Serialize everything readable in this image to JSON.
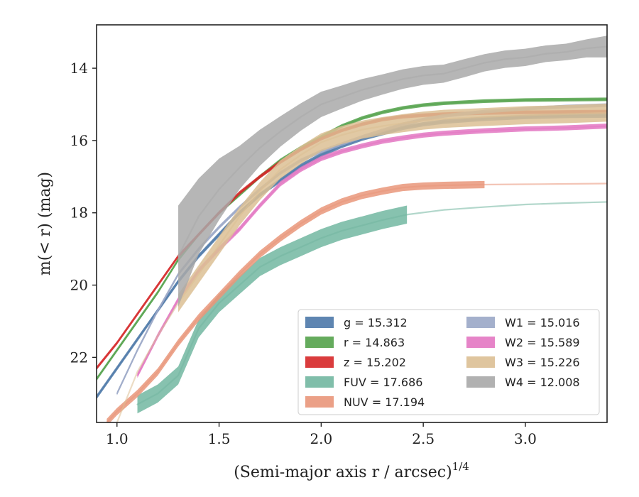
{
  "chart_data": {
    "type": "line",
    "xlabel": "(Semi-major axis r / arcsec)",
    "xlabel_sup": "1/4",
    "ylabel": "m(< r) (mag)",
    "xlim": [
      0.9,
      3.4
    ],
    "ylim": [
      23.8,
      12.8
    ],
    "y_inverted": true,
    "grid": false,
    "legend_position": "lower-right",
    "xticks": [
      1.0,
      1.5,
      2.0,
      2.5,
      3.0
    ],
    "xtick_labels": [
      "1.0",
      "1.5",
      "2.0",
      "2.5",
      "3.0"
    ],
    "yticks": [
      14,
      16,
      18,
      20,
      22
    ],
    "ytick_labels": [
      "14",
      "16",
      "18",
      "20",
      "22"
    ],
    "series": [
      {
        "name": "g",
        "legend_label": "g = 15.312",
        "color": "#4c78a8",
        "x": [
          0.9,
          1.0,
          1.1,
          1.2,
          1.3,
          1.4,
          1.5,
          1.6,
          1.7,
          1.8,
          1.9,
          2.0,
          2.1,
          2.2,
          2.3,
          2.4,
          2.5,
          2.6,
          2.8,
          3.0,
          3.2,
          3.4
        ],
        "y": [
          23.1,
          22.3,
          21.5,
          20.7,
          19.9,
          19.2,
          18.6,
          18.0,
          17.5,
          17.1,
          16.7,
          16.4,
          16.15,
          15.95,
          15.8,
          15.65,
          15.55,
          15.48,
          15.4,
          15.35,
          15.32,
          15.31
        ],
        "band_halfwidth": 0.06
      },
      {
        "name": "r",
        "legend_label": "r = 14.863",
        "color": "#54a24b",
        "x": [
          0.9,
          1.0,
          1.1,
          1.2,
          1.3,
          1.4,
          1.5,
          1.6,
          1.7,
          1.8,
          1.9,
          2.0,
          2.1,
          2.2,
          2.3,
          2.4,
          2.5,
          2.6,
          2.8,
          3.0,
          3.2,
          3.4
        ],
        "y": [
          22.6,
          21.8,
          21.0,
          20.2,
          19.3,
          18.6,
          18.0,
          17.5,
          17.0,
          16.55,
          16.2,
          15.9,
          15.6,
          15.38,
          15.22,
          15.1,
          15.02,
          14.97,
          14.91,
          14.88,
          14.87,
          14.86
        ],
        "band_halfwidth": 0.05
      },
      {
        "name": "z",
        "legend_label": "z = 15.202",
        "color": "#d62728",
        "x": [
          0.9,
          1.0,
          1.1,
          1.2,
          1.3,
          1.4,
          1.5,
          1.6,
          1.7,
          1.8,
          1.9,
          2.0,
          2.1,
          2.2,
          2.3,
          2.4,
          2.5,
          2.6,
          2.8,
          3.0,
          3.2,
          3.4
        ],
        "y": [
          22.3,
          21.6,
          20.8,
          20.0,
          19.2,
          18.6,
          18.0,
          17.45,
          17.0,
          16.6,
          16.25,
          15.95,
          15.72,
          15.55,
          15.42,
          15.34,
          15.3,
          15.27,
          15.24,
          15.22,
          15.21,
          15.2
        ],
        "band_halfwidth": 0.05
      },
      {
        "name": "FUV",
        "legend_label": "FUV = 17.686",
        "color": "#72b7a1",
        "x": [
          1.1,
          1.2,
          1.3,
          1.4,
          1.5,
          1.6,
          1.7,
          1.8,
          1.9,
          2.0,
          2.1,
          2.2,
          2.3,
          2.42,
          2.6,
          2.8,
          3.0,
          3.2,
          3.4
        ],
        "y": [
          23.3,
          23.0,
          22.5,
          21.2,
          20.5,
          20.0,
          19.5,
          19.2,
          18.95,
          18.7,
          18.5,
          18.35,
          18.2,
          18.05,
          17.92,
          17.84,
          17.77,
          17.73,
          17.7
        ],
        "band_halfwidth": 0.25,
        "band_end_x": 2.42
      },
      {
        "name": "NUV",
        "legend_label": "NUV = 17.194",
        "color": "#e9967a",
        "x": [
          0.95,
          1.0,
          1.1,
          1.2,
          1.3,
          1.4,
          1.5,
          1.6,
          1.7,
          1.8,
          1.9,
          2.0,
          2.1,
          2.2,
          2.3,
          2.4,
          2.5,
          2.6,
          2.8,
          3.0,
          3.2,
          3.4
        ],
        "y": [
          23.8,
          23.5,
          23.0,
          22.4,
          21.6,
          20.9,
          20.3,
          19.7,
          19.15,
          18.7,
          18.3,
          17.95,
          17.7,
          17.52,
          17.4,
          17.3,
          17.26,
          17.24,
          17.22,
          17.21,
          17.2,
          17.19
        ],
        "band_halfwidth": 0.1,
        "band_end_x": 2.82
      },
      {
        "name": "W1",
        "legend_label": "W1 = 15.016",
        "color": "#9aa7c7",
        "x": [
          1.0,
          1.1,
          1.2,
          1.3,
          1.4,
          1.5,
          1.6,
          1.7,
          1.8,
          1.9,
          2.0,
          2.1,
          2.2,
          2.3,
          2.4,
          2.5,
          2.6,
          2.8,
          3.0,
          3.2,
          3.4
        ],
        "y": [
          23.0,
          21.8,
          20.7,
          19.7,
          19.0,
          18.4,
          17.85,
          17.35,
          16.9,
          16.55,
          16.3,
          16.1,
          15.9,
          15.72,
          15.55,
          15.42,
          15.32,
          15.2,
          15.12,
          15.06,
          15.02
        ],
        "band_halfwidth": 0.05
      },
      {
        "name": "W2",
        "legend_label": "W2 = 15.589",
        "color": "#e377c2",
        "x": [
          1.1,
          1.2,
          1.3,
          1.4,
          1.5,
          1.6,
          1.7,
          1.8,
          1.9,
          2.0,
          2.1,
          2.2,
          2.3,
          2.4,
          2.5,
          2.6,
          2.8,
          3.0,
          3.2,
          3.4
        ],
        "y": [
          22.5,
          21.4,
          20.4,
          19.6,
          19.0,
          18.45,
          17.8,
          17.2,
          16.8,
          16.5,
          16.3,
          16.15,
          16.02,
          15.93,
          15.85,
          15.8,
          15.73,
          15.68,
          15.65,
          15.6
        ],
        "band_halfwidth": 0.07
      },
      {
        "name": "W3",
        "legend_label": "W3 = 15.226",
        "color": "#dcbf94",
        "x": [
          1.0,
          1.1,
          1.2,
          1.3,
          1.4,
          1.5,
          1.6,
          1.7,
          1.8,
          1.9,
          2.0,
          2.1,
          2.2,
          2.3,
          2.4,
          2.5,
          2.6,
          2.8,
          3.0,
          3.2,
          3.4
        ],
        "y": [
          23.8,
          22.4,
          21.4,
          20.5,
          19.7,
          18.9,
          18.1,
          17.4,
          16.8,
          16.4,
          16.05,
          15.85,
          15.7,
          15.6,
          15.52,
          15.45,
          15.4,
          15.35,
          15.3,
          15.27,
          15.23
        ],
        "band_halfwidth": 0.25,
        "band_start_x": 1.3
      },
      {
        "name": "W4",
        "legend_label": "W4 = 12.008",
        "color": "#a9a9a9",
        "x": [
          1.3,
          1.4,
          1.5,
          1.6,
          1.7,
          1.8,
          1.9,
          2.0,
          2.1,
          2.2,
          2.3,
          2.4,
          2.5,
          2.6,
          2.7,
          2.8,
          2.9,
          3.0,
          3.1,
          3.2,
          3.3,
          3.4
        ],
        "y": [
          19.2,
          18.1,
          17.35,
          16.75,
          16.2,
          15.75,
          15.35,
          15.0,
          14.8,
          14.6,
          14.45,
          14.3,
          14.2,
          14.15,
          14.0,
          13.85,
          13.75,
          13.7,
          13.6,
          13.55,
          13.45,
          13.4
        ],
        "band_halfwidths": [
          1.4,
          1.05,
          0.85,
          0.6,
          0.5,
          0.42,
          0.38,
          0.35,
          0.32,
          0.3,
          0.28,
          0.27,
          0.26,
          0.25,
          0.25,
          0.24,
          0.24,
          0.24,
          0.23,
          0.23,
          0.25,
          0.3
        ]
      }
    ]
  }
}
